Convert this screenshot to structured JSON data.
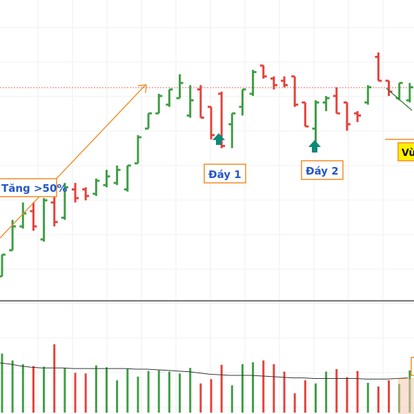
{
  "chart_data": {
    "type": "ohlc",
    "colors": {
      "up": "#3e9e45",
      "down": "#e5413b",
      "annotation": "#f08a24",
      "label_text": "#2457c5",
      "marker": "#0b8a78",
      "highlight": "#fff200",
      "ma": "#333333"
    },
    "annotations": {
      "rise_label": "Tăng >50%",
      "bottom1_label": "Đáy 1",
      "bottom2_label": "Đáy 2",
      "zone_label": "Vù"
    },
    "price_range": [
      0,
      100
    ],
    "bars": [
      {
        "dir": "up",
        "open": 3,
        "close": 13,
        "high": 13,
        "low": 3
      },
      {
        "dir": "up",
        "open": 15,
        "close": 26,
        "high": 29,
        "low": 15
      },
      {
        "dir": "up",
        "open": 26,
        "close": 32,
        "high": 37,
        "low": 25
      },
      {
        "dir": "down",
        "open": 33,
        "close": 26,
        "high": 37,
        "low": 24
      },
      {
        "dir": "up",
        "open": 20,
        "close": 38,
        "high": 39,
        "low": 19
      },
      {
        "dir": "down",
        "open": 37,
        "close": 28,
        "high": 40,
        "low": 26
      },
      {
        "dir": "up",
        "open": 30,
        "close": 44,
        "high": 46,
        "low": 29
      },
      {
        "dir": "down",
        "open": 43,
        "close": 39,
        "high": 46,
        "low": 37
      },
      {
        "dir": "down",
        "open": 43,
        "close": 40,
        "high": 44,
        "low": 38
      },
      {
        "dir": "up",
        "open": 41,
        "close": 47,
        "high": 48,
        "low": 40
      },
      {
        "dir": "up",
        "open": 45,
        "close": 49,
        "high": 52,
        "low": 44
      },
      {
        "dir": "up",
        "open": 46,
        "close": 52,
        "high": 54,
        "low": 45
      },
      {
        "dir": "up",
        "open": 43,
        "close": 54,
        "high": 54,
        "low": 42
      },
      {
        "dir": "up",
        "open": 55,
        "close": 67,
        "high": 68,
        "low": 55
      },
      {
        "dir": "up",
        "open": 71,
        "close": 78,
        "high": 78,
        "low": 71
      },
      {
        "dir": "up",
        "open": 78,
        "close": 86,
        "high": 87,
        "low": 78
      },
      {
        "dir": "up",
        "open": 82,
        "close": 89,
        "high": 89,
        "low": 81
      },
      {
        "dir": "up",
        "open": 85,
        "close": 92,
        "high": 96,
        "low": 85
      },
      {
        "dir": "up",
        "open": 77,
        "close": 84,
        "high": 91,
        "low": 76
      },
      {
        "dir": "down",
        "open": 89,
        "close": 76,
        "high": 91,
        "low": 76
      },
      {
        "dir": "down",
        "open": 81,
        "close": 68,
        "high": 81,
        "low": 66
      },
      {
        "dir": "down",
        "open": 87,
        "close": 63,
        "high": 88,
        "low": 62
      },
      {
        "dir": "up",
        "open": 73,
        "close": 78,
        "high": 78,
        "low": 62
      },
      {
        "dir": "up",
        "open": 81,
        "close": 89,
        "high": 89,
        "low": 77
      },
      {
        "dir": "up",
        "open": 87,
        "close": 97,
        "high": 98,
        "low": 86
      },
      {
        "dir": "down",
        "open": 100,
        "close": 95,
        "high": 100,
        "low": 94
      },
      {
        "dir": "down",
        "open": 94,
        "close": 91,
        "high": 95,
        "low": 89
      },
      {
        "dir": "down",
        "open": 93,
        "close": 91,
        "high": 95,
        "low": 90
      },
      {
        "dir": "down",
        "open": 95,
        "close": 82,
        "high": 95,
        "low": 81
      },
      {
        "dir": "down",
        "open": 83,
        "close": 72,
        "high": 83,
        "low": 72
      },
      {
        "dir": "up",
        "open": 71,
        "close": 83,
        "high": 84,
        "low": 60
      },
      {
        "dir": "up",
        "open": 83,
        "close": 85,
        "high": 86,
        "low": 79
      },
      {
        "dir": "down",
        "open": 86,
        "close": 78,
        "high": 90,
        "low": 78
      },
      {
        "dir": "down",
        "open": 83,
        "close": 73,
        "high": 83,
        "low": 70
      },
      {
        "dir": "down",
        "open": 78,
        "close": 77,
        "high": 79,
        "low": 74
      },
      {
        "dir": "up",
        "open": 83,
        "close": 90,
        "high": 91,
        "low": 82
      },
      {
        "dir": "down",
        "open": 104,
        "close": 93,
        "high": 106,
        "low": 93
      },
      {
        "dir": "down",
        "open": 93,
        "close": 88,
        "high": 93,
        "low": 86
      },
      {
        "dir": "up",
        "open": 85,
        "close": 92,
        "high": 92,
        "low": 84
      },
      {
        "dir": "up",
        "open": 84,
        "close": 90,
        "high": 92,
        "low": 83
      }
    ],
    "volume": [
      95,
      84,
      78,
      75,
      74,
      110,
      72,
      64,
      63,
      76,
      73,
      52,
      71,
      58,
      67,
      68,
      66,
      63,
      72,
      47,
      54,
      77,
      44,
      78,
      81,
      84,
      78,
      66,
      31,
      52,
      47,
      66,
      70,
      57,
      67,
      48,
      42,
      52,
      46,
      68
    ],
    "volume_ma": [
      80,
      78,
      75,
      73,
      72,
      72,
      72,
      71,
      71,
      71,
      71,
      71,
      71,
      70,
      70,
      69,
      68,
      67,
      66,
      64,
      62,
      61,
      60,
      60,
      60,
      59,
      58,
      57,
      56,
      56,
      55,
      55,
      55,
      55,
      55,
      54,
      54,
      54,
      55,
      56
    ]
  }
}
